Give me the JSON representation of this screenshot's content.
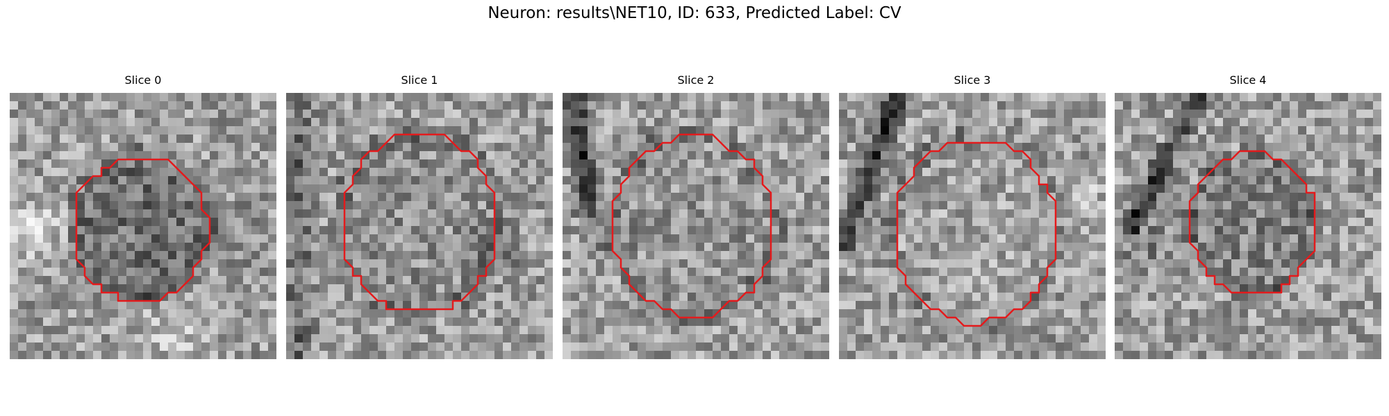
{
  "figure": {
    "title": "Neuron: results\\NET10, ID: 633, Predicted Label: CV"
  },
  "colors": {
    "contour": "#e41a1c",
    "background": "#ffffff"
  },
  "slices": [
    {
      "title": "Slice 0"
    },
    {
      "title": "Slice 1"
    },
    {
      "title": "Slice 2"
    },
    {
      "title": "Slice 3"
    },
    {
      "title": "Slice 4"
    }
  ]
}
